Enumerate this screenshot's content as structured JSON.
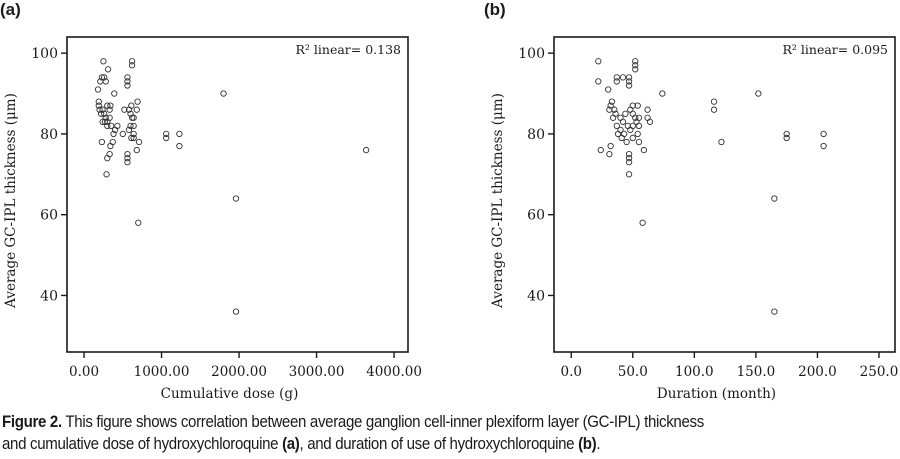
{
  "figure": {
    "caption_lead": "Figure 2.",
    "caption_text_1": " This figure shows correlation between average ganglion cell-inner plexiform layer (GC-IPL) thickness",
    "caption_text_2": "and cumulative dose of hydroxychloroquine ",
    "caption_ref_a": "(a)",
    "caption_text_3": ", and duration of use of hydroxychloroquine ",
    "caption_ref_b": "(b)",
    "caption_text_4": "."
  },
  "chart_data": [
    {
      "panel": "(a)",
      "type": "scatter",
      "title": "",
      "xlabel": "Cumulative dose (g)",
      "ylabel": "Average GC-IPL thickness (μm)",
      "xlim": [
        -220,
        4180
      ],
      "ylim": [
        26,
        104
      ],
      "xticks": [
        0,
        1000,
        2000,
        3000,
        4000
      ],
      "xtick_labels": [
        "0.00",
        "1000.00",
        "2000.00",
        "3000.00",
        "4000.00"
      ],
      "yticks": [
        40,
        60,
        80,
        100
      ],
      "ytick_labels": [
        "40",
        "60",
        "80",
        "100"
      ],
      "grid": false,
      "annotation": "R² linear= 0.138",
      "annotation_placement": "top-right",
      "marker": "open-circle",
      "points": [
        [
          250,
          98
        ],
        [
          310,
          96
        ],
        [
          230,
          94
        ],
        [
          210,
          93
        ],
        [
          260,
          94
        ],
        [
          280,
          93
        ],
        [
          180,
          91
        ],
        [
          390,
          90
        ],
        [
          190,
          88
        ],
        [
          190,
          87
        ],
        [
          300,
          87
        ],
        [
          340,
          87
        ],
        [
          200,
          86
        ],
        [
          240,
          86
        ],
        [
          330,
          86
        ],
        [
          260,
          85
        ],
        [
          220,
          85
        ],
        [
          280,
          84
        ],
        [
          330,
          84
        ],
        [
          240,
          83
        ],
        [
          270,
          83
        ],
        [
          300,
          83
        ],
        [
          300,
          82
        ],
        [
          350,
          82
        ],
        [
          230,
          78
        ],
        [
          300,
          74
        ],
        [
          290,
          70
        ],
        [
          340,
          77
        ],
        [
          330,
          75
        ],
        [
          380,
          80
        ],
        [
          400,
          81
        ],
        [
          430,
          82
        ],
        [
          370,
          78
        ],
        [
          560,
          94
        ],
        [
          560,
          93
        ],
        [
          560,
          92
        ],
        [
          620,
          98
        ],
        [
          620,
          97
        ],
        [
          690,
          88
        ],
        [
          680,
          86
        ],
        [
          580,
          86
        ],
        [
          610,
          87
        ],
        [
          600,
          85
        ],
        [
          620,
          84
        ],
        [
          640,
          84
        ],
        [
          640,
          82
        ],
        [
          580,
          81
        ],
        [
          610,
          79
        ],
        [
          640,
          80
        ],
        [
          640,
          79
        ],
        [
          710,
          78
        ],
        [
          680,
          76
        ],
        [
          560,
          75
        ],
        [
          560,
          74
        ],
        [
          560,
          73
        ],
        [
          600,
          82
        ],
        [
          520,
          86
        ],
        [
          500,
          80
        ],
        [
          1060,
          80
        ],
        [
          1060,
          79
        ],
        [
          1230,
          80
        ],
        [
          1230,
          77
        ],
        [
          1800,
          90
        ],
        [
          3640,
          76
        ],
        [
          1960,
          64
        ],
        [
          700,
          58
        ],
        [
          1960,
          36
        ]
      ]
    },
    {
      "panel": "(b)",
      "type": "scatter",
      "title": "",
      "xlabel": "Duration (month)",
      "ylabel": "Average GC-IPL thickness (μm)",
      "xlim": [
        -14,
        263
      ],
      "ylim": [
        26,
        104
      ],
      "xticks": [
        0,
        50,
        100,
        150,
        200,
        250
      ],
      "xtick_labels": [
        "0.0",
        "50.0",
        "100.0",
        "150.0",
        "200.0",
        "250.0"
      ],
      "yticks": [
        40,
        60,
        80,
        100
      ],
      "ytick_labels": [
        "40",
        "60",
        "80",
        "100"
      ],
      "grid": false,
      "annotation": "R² linear= 0.095",
      "annotation_placement": "top-right",
      "marker": "open-circle",
      "points": [
        [
          22,
          98
        ],
        [
          52,
          98
        ],
        [
          52,
          97
        ],
        [
          52,
          96
        ],
        [
          37,
          94
        ],
        [
          37,
          93
        ],
        [
          42,
          94
        ],
        [
          47,
          94
        ],
        [
          47,
          93
        ],
        [
          47,
          92
        ],
        [
          22,
          93
        ],
        [
          30,
          91
        ],
        [
          74,
          90
        ],
        [
          33,
          88
        ],
        [
          32,
          87
        ],
        [
          31,
          86
        ],
        [
          35,
          86
        ],
        [
          50,
          87
        ],
        [
          54,
          87
        ],
        [
          62,
          86
        ],
        [
          62,
          84
        ],
        [
          64,
          83
        ],
        [
          36,
          85
        ],
        [
          40,
          84
        ],
        [
          42,
          83
        ],
        [
          44,
          85
        ],
        [
          48,
          86
        ],
        [
          50,
          85
        ],
        [
          52,
          84
        ],
        [
          55,
          84
        ],
        [
          34,
          84
        ],
        [
          37,
          82
        ],
        [
          40,
          81
        ],
        [
          43,
          80
        ],
        [
          46,
          82
        ],
        [
          48,
          81
        ],
        [
          50,
          82
        ],
        [
          53,
          83
        ],
        [
          55,
          82
        ],
        [
          38,
          80
        ],
        [
          41,
          79
        ],
        [
          45,
          78
        ],
        [
          50,
          79
        ],
        [
          54,
          80
        ],
        [
          55,
          78
        ],
        [
          24,
          76
        ],
        [
          32,
          77
        ],
        [
          31,
          75
        ],
        [
          59,
          76
        ],
        [
          47,
          75
        ],
        [
          47,
          74
        ],
        [
          47,
          73
        ],
        [
          47,
          70
        ],
        [
          116,
          88
        ],
        [
          116,
          86
        ],
        [
          122,
          78
        ],
        [
          152,
          90
        ],
        [
          175,
          80
        ],
        [
          175,
          79
        ],
        [
          205,
          80
        ],
        [
          205,
          77
        ],
        [
          165,
          64
        ],
        [
          58,
          58
        ],
        [
          165,
          36
        ]
      ]
    }
  ]
}
